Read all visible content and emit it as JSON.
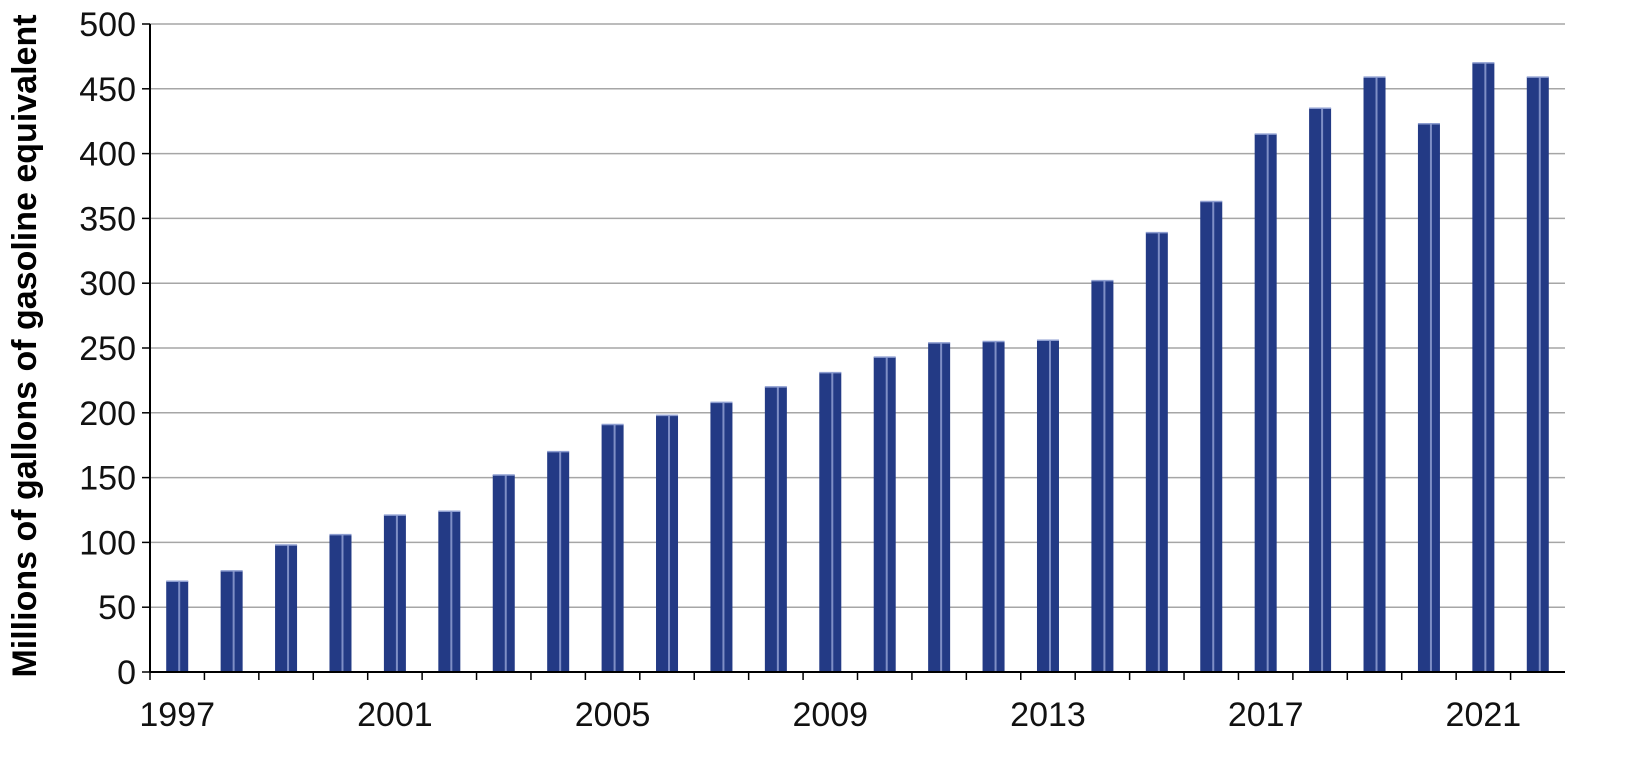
{
  "chart_data": {
    "type": "bar",
    "title": "",
    "xlabel": "",
    "ylabel": "Millions of gallons of gasoline equivalent",
    "categories": [
      "1997",
      "1998",
      "1999",
      "2000",
      "2001",
      "2002",
      "2003",
      "2004",
      "2005",
      "2006",
      "2007",
      "2008",
      "2009",
      "2010",
      "2011",
      "2012",
      "2013",
      "2014",
      "2015",
      "2016",
      "2017",
      "2018",
      "2019",
      "2020",
      "2021",
      "2022"
    ],
    "x_tick_labels": [
      "1997",
      "2001",
      "2005",
      "2009",
      "2013",
      "2017",
      "2021"
    ],
    "values": [
      70,
      78,
      98,
      106,
      121,
      124,
      152,
      170,
      191,
      198,
      208,
      220,
      231,
      243,
      254,
      255,
      256,
      302,
      339,
      363,
      415,
      435,
      459,
      423,
      470,
      459
    ],
    "ylim": [
      0,
      500
    ],
    "yticks": [
      0,
      50,
      100,
      150,
      200,
      250,
      300,
      350,
      400,
      450,
      500
    ],
    "grid": true,
    "legend": "none",
    "colors": {
      "bar": "#233a85",
      "bar_highlight": "#8e9ed0",
      "grid": "#a6a6a6",
      "axis": "#000000"
    }
  }
}
